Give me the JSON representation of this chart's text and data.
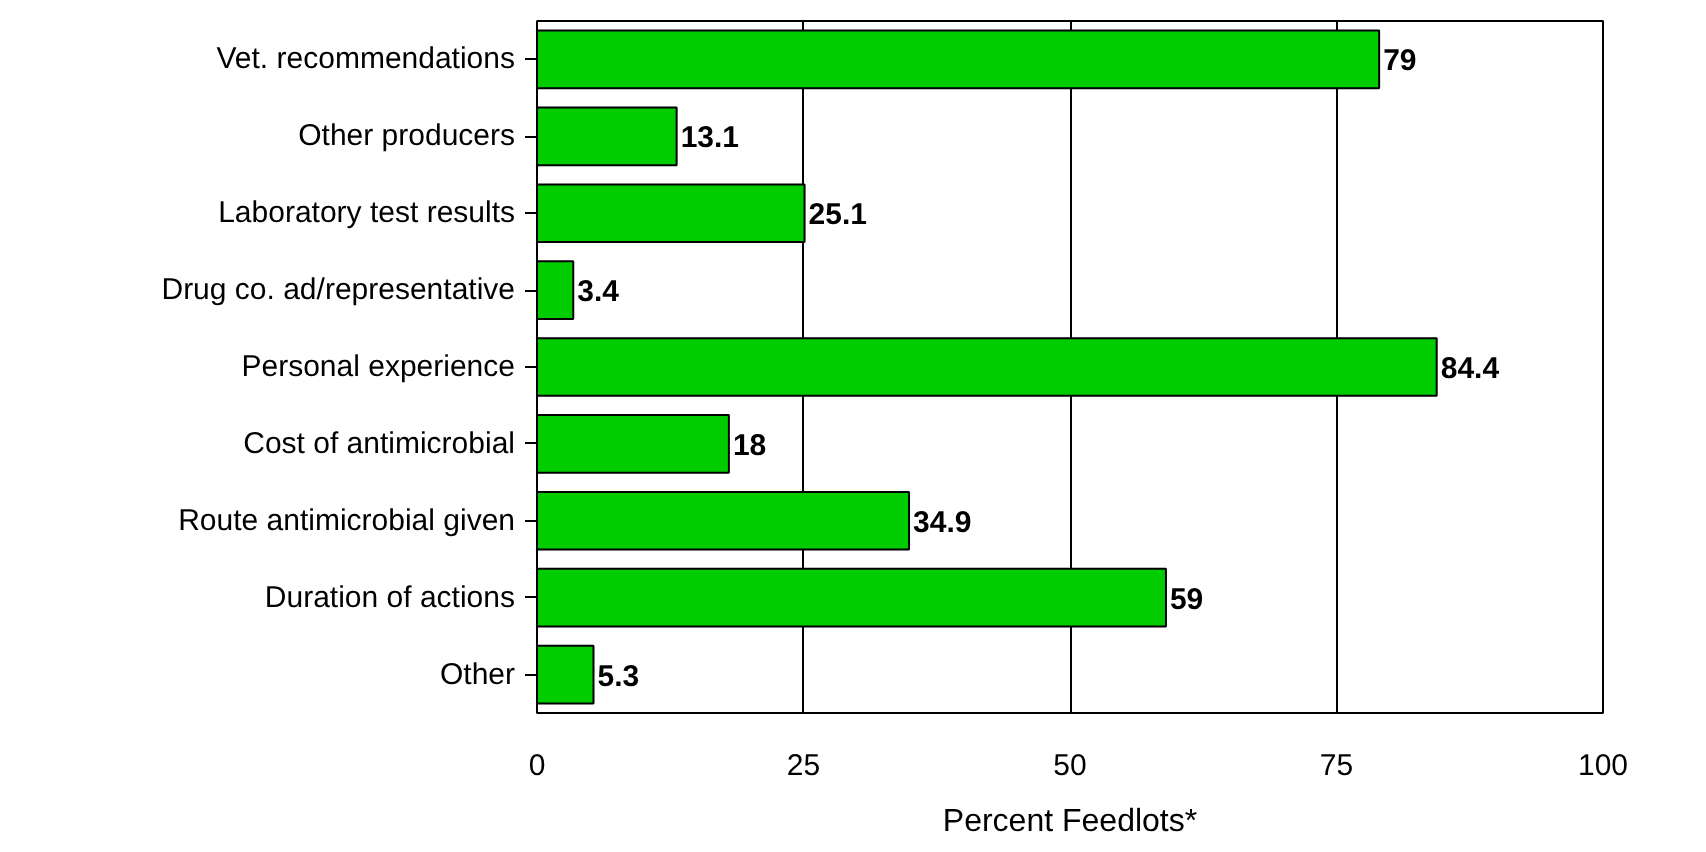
{
  "chart_data": {
    "type": "bar",
    "orientation": "horizontal",
    "xlabel": "Percent Feedlots*",
    "categories": [
      "Vet. recommendations",
      "Other producers",
      "Laboratory test results",
      "Drug co. ad/representative",
      "Personal experience",
      "Cost of antimicrobial",
      "Route antimicrobial given",
      "Duration of actions",
      "Other"
    ],
    "values": [
      79,
      13.1,
      25.1,
      3.4,
      84.4,
      18,
      34.9,
      59,
      5.3
    ],
    "color": "#00cc00",
    "xlim": [
      0,
      100
    ],
    "xticks": [
      0,
      25,
      50,
      75,
      100
    ],
    "grid": "x",
    "data_labels": true
  }
}
